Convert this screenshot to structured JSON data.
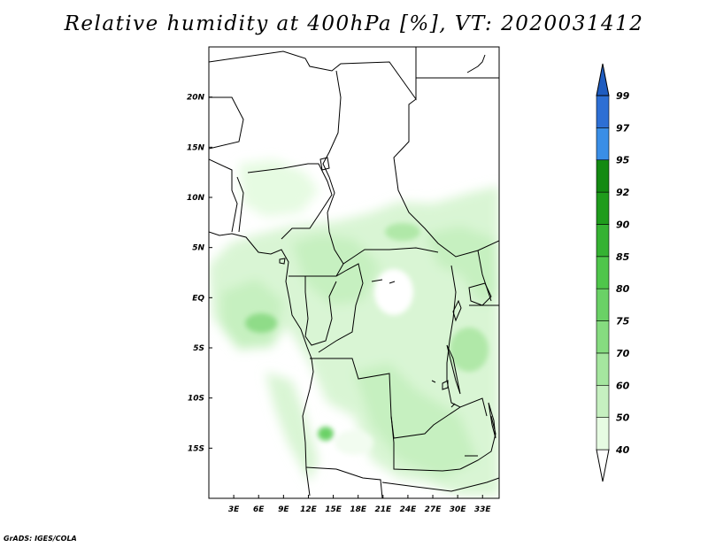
{
  "title": "Relative humidity at 400hPa [%], VT: 2020031412",
  "credit": "GrADS: IGES/COLA",
  "map": {
    "lon_range": [
      0,
      35
    ],
    "lat_range": [
      -20,
      25
    ],
    "lon_ticks": [
      {
        "value": 3,
        "label": "3E"
      },
      {
        "value": 6,
        "label": "6E"
      },
      {
        "value": 9,
        "label": "9E"
      },
      {
        "value": 12,
        "label": "12E"
      },
      {
        "value": 15,
        "label": "15E"
      },
      {
        "value": 18,
        "label": "18E"
      },
      {
        "value": 21,
        "label": "21E"
      },
      {
        "value": 24,
        "label": "24E"
      },
      {
        "value": 27,
        "label": "27E"
      },
      {
        "value": 30,
        "label": "30E"
      },
      {
        "value": 33,
        "label": "33E"
      }
    ],
    "lat_ticks": [
      {
        "value": 20,
        "label": "20N"
      },
      {
        "value": 15,
        "label": "15N"
      },
      {
        "value": 10,
        "label": "10N"
      },
      {
        "value": 5,
        "label": "5N"
      },
      {
        "value": 0,
        "label": "EQ"
      },
      {
        "value": -5,
        "label": "5S"
      },
      {
        "value": -10,
        "label": "10S"
      },
      {
        "value": -15,
        "label": "15S"
      }
    ]
  },
  "colorbar": {
    "levels": [
      "40",
      "50",
      "60",
      "70",
      "75",
      "80",
      "85",
      "90",
      "92",
      "95",
      "97",
      "99"
    ],
    "colors": [
      "#ffffff",
      "#e6fbe2",
      "#c6f0c0",
      "#a5e69f",
      "#86dc80",
      "#6ad166",
      "#4fc64b",
      "#35b232",
      "#1f9c1c",
      "#138a12",
      "#3a8ee6",
      "#2d6fd4",
      "#1e5cc0"
    ]
  }
}
